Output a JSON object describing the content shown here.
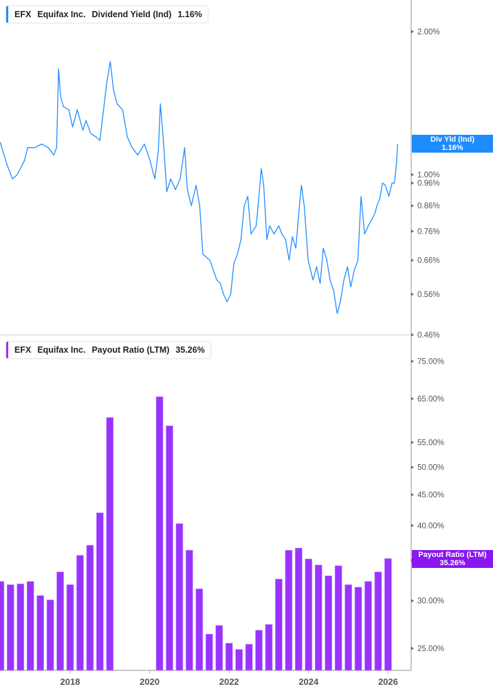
{
  "colors": {
    "yield": "#1e8cff",
    "payout": "#9933ff",
    "payout_flag": "#8a16f0",
    "axis": "#b5b5b5"
  },
  "legend_top": {
    "ticker": "EFX",
    "company": "Equifax Inc.",
    "metric": "Dividend Yield (Ind)",
    "value": "1.16%"
  },
  "legend_bottom": {
    "ticker": "EFX",
    "company": "Equifax Inc.",
    "metric": "Payout Ratio (LTM)",
    "value": "35.26%"
  },
  "flag_top": {
    "label": "Div Yld (Ind)",
    "value": "1.16%"
  },
  "flag_bottom": {
    "label": "Payout Ratio (LTM)",
    "value": "35.26%"
  },
  "chart_data": [
    {
      "type": "line",
      "scale": "log",
      "legend": "top-left",
      "series": [
        {
          "name": "Dividend Yield (Ind)",
          "unit": "%",
          "points": [
            [
              2016.24,
              1.17
            ],
            [
              2016.41,
              1.05
            ],
            [
              2016.55,
              0.98
            ],
            [
              2016.67,
              1.0
            ],
            [
              2016.85,
              1.07
            ],
            [
              2016.93,
              1.14
            ],
            [
              2017.11,
              1.14
            ],
            [
              2017.28,
              1.16
            ],
            [
              2017.45,
              1.14
            ],
            [
              2017.59,
              1.1
            ],
            [
              2017.66,
              1.14
            ],
            [
              2017.71,
              1.67
            ],
            [
              2017.76,
              1.46
            ],
            [
              2017.83,
              1.39
            ],
            [
              2017.97,
              1.37
            ],
            [
              2018.06,
              1.26
            ],
            [
              2018.18,
              1.37
            ],
            [
              2018.32,
              1.24
            ],
            [
              2018.4,
              1.3
            ],
            [
              2018.52,
              1.22
            ],
            [
              2018.66,
              1.2
            ],
            [
              2018.75,
              1.18
            ],
            [
              2018.84,
              1.37
            ],
            [
              2018.92,
              1.56
            ],
            [
              2019.01,
              1.73
            ],
            [
              2019.09,
              1.51
            ],
            [
              2019.18,
              1.41
            ],
            [
              2019.32,
              1.37
            ],
            [
              2019.44,
              1.2
            ],
            [
              2019.56,
              1.14
            ],
            [
              2019.7,
              1.1
            ],
            [
              2019.87,
              1.16
            ],
            [
              2020.01,
              1.07
            ],
            [
              2020.13,
              0.98
            ],
            [
              2020.22,
              1.12
            ],
            [
              2020.27,
              1.41
            ],
            [
              2020.34,
              1.2
            ],
            [
              2020.43,
              0.92
            ],
            [
              2020.53,
              0.98
            ],
            [
              2020.65,
              0.93
            ],
            [
              2020.77,
              0.98
            ],
            [
              2020.88,
              1.14
            ],
            [
              2020.95,
              0.93
            ],
            [
              2021.05,
              0.86
            ],
            [
              2021.17,
              0.95
            ],
            [
              2021.26,
              0.86
            ],
            [
              2021.34,
              0.68
            ],
            [
              2021.43,
              0.67
            ],
            [
              2021.52,
              0.66
            ],
            [
              2021.6,
              0.63
            ],
            [
              2021.69,
              0.6
            ],
            [
              2021.78,
              0.59
            ],
            [
              2021.86,
              0.56
            ],
            [
              2021.95,
              0.54
            ],
            [
              2022.04,
              0.56
            ],
            [
              2022.12,
              0.65
            ],
            [
              2022.21,
              0.68
            ],
            [
              2022.3,
              0.73
            ],
            [
              2022.38,
              0.86
            ],
            [
              2022.47,
              0.9
            ],
            [
              2022.55,
              0.75
            ],
            [
              2022.68,
              0.78
            ],
            [
              2022.73,
              0.86
            ],
            [
              2022.81,
              1.03
            ],
            [
              2022.87,
              0.95
            ],
            [
              2022.95,
              0.73
            ],
            [
              2023.02,
              0.78
            ],
            [
              2023.13,
              0.75
            ],
            [
              2023.25,
              0.78
            ],
            [
              2023.33,
              0.75
            ],
            [
              2023.42,
              0.73
            ],
            [
              2023.51,
              0.66
            ],
            [
              2023.59,
              0.74
            ],
            [
              2023.68,
              0.7
            ],
            [
              2023.77,
              0.86
            ],
            [
              2023.82,
              0.95
            ],
            [
              2023.89,
              0.86
            ],
            [
              2023.99,
              0.66
            ],
            [
              2024.11,
              0.6
            ],
            [
              2024.2,
              0.64
            ],
            [
              2024.29,
              0.59
            ],
            [
              2024.37,
              0.7
            ],
            [
              2024.46,
              0.66
            ],
            [
              2024.54,
              0.6
            ],
            [
              2024.63,
              0.57
            ],
            [
              2024.72,
              0.51
            ],
            [
              2024.8,
              0.54
            ],
            [
              2024.89,
              0.6
            ],
            [
              2024.98,
              0.64
            ],
            [
              2025.06,
              0.58
            ],
            [
              2025.15,
              0.63
            ],
            [
              2025.24,
              0.66
            ],
            [
              2025.32,
              0.9
            ],
            [
              2025.41,
              0.75
            ],
            [
              2025.5,
              0.78
            ],
            [
              2025.58,
              0.8
            ],
            [
              2025.67,
              0.83
            ],
            [
              2025.72,
              0.86
            ],
            [
              2025.79,
              0.89
            ],
            [
              2025.86,
              0.96
            ],
            [
              2025.93,
              0.95
            ],
            [
              2026.02,
              0.9
            ],
            [
              2026.1,
              0.96
            ],
            [
              2026.16,
              0.96
            ],
            [
              2026.21,
              1.05
            ],
            [
              2026.24,
              1.16
            ]
          ]
        }
      ],
      "yticks": [
        "2.00%",
        "1.00%",
        "0.96%",
        "0.86%",
        "0.76%",
        "0.66%",
        "0.56%",
        "0.46%"
      ],
      "ylim": [
        0.46,
        2.3
      ]
    },
    {
      "type": "bar",
      "scale": "log",
      "legend": "top-left",
      "series": [
        {
          "name": "Payout Ratio (LTM)",
          "unit": "%",
          "bars": [
            [
              "2016 Q1",
              32.3
            ],
            [
              "2016 Q2",
              31.9
            ],
            [
              "2016 Q3",
              32.0
            ],
            [
              "2016 Q4",
              32.3
            ],
            [
              "2017 Q1",
              30.6
            ],
            [
              "2017 Q2",
              30.1
            ],
            [
              "2017 Q3",
              33.5
            ],
            [
              "2017 Q4",
              31.9
            ],
            [
              "2018 Q1",
              35.7
            ],
            [
              "2018 Q2",
              37.1
            ],
            [
              "2018 Q3",
              42.0
            ],
            [
              "2018 Q4",
              60.5
            ],
            [
              "2019 Q1",
              null
            ],
            [
              "2019 Q2",
              null
            ],
            [
              "2019 Q3",
              null
            ],
            [
              "2019 Q4",
              null
            ],
            [
              "2020 Q1",
              65.5
            ],
            [
              "2020 Q2",
              58.6
            ],
            [
              "2020 Q3",
              40.3
            ],
            [
              "2020 Q4",
              36.4
            ],
            [
              "2021 Q1",
              31.4
            ],
            [
              "2021 Q2",
              26.4
            ],
            [
              "2021 Q3",
              27.3
            ],
            [
              "2021 Q4",
              25.5
            ],
            [
              "2022 Q1",
              24.9
            ],
            [
              "2022 Q2",
              25.4
            ],
            [
              "2022 Q3",
              26.8
            ],
            [
              "2022 Q4",
              27.4
            ],
            [
              "2023 Q1",
              32.6
            ],
            [
              "2023 Q2",
              36.4
            ],
            [
              "2023 Q3",
              36.7
            ],
            [
              "2023 Q4",
              35.2
            ],
            [
              "2024 Q1",
              34.4
            ],
            [
              "2024 Q2",
              33.0
            ],
            [
              "2024 Q3",
              34.3
            ],
            [
              "2024 Q4",
              31.9
            ],
            [
              "2025 Q1",
              31.6
            ],
            [
              "2025 Q2",
              32.3
            ],
            [
              "2025 Q3",
              33.5
            ],
            [
              "2025 Q4",
              35.26
            ]
          ]
        }
      ],
      "yticks": [
        "75.00%",
        "65.00%",
        "55.00%",
        "50.00%",
        "45.00%",
        "40.00%",
        "35.00%",
        "30.00%",
        "25.00%"
      ],
      "xticks": [
        "2018",
        "2020",
        "2022",
        "2024",
        "2026"
      ],
      "ylim": [
        23,
        80
      ]
    }
  ]
}
